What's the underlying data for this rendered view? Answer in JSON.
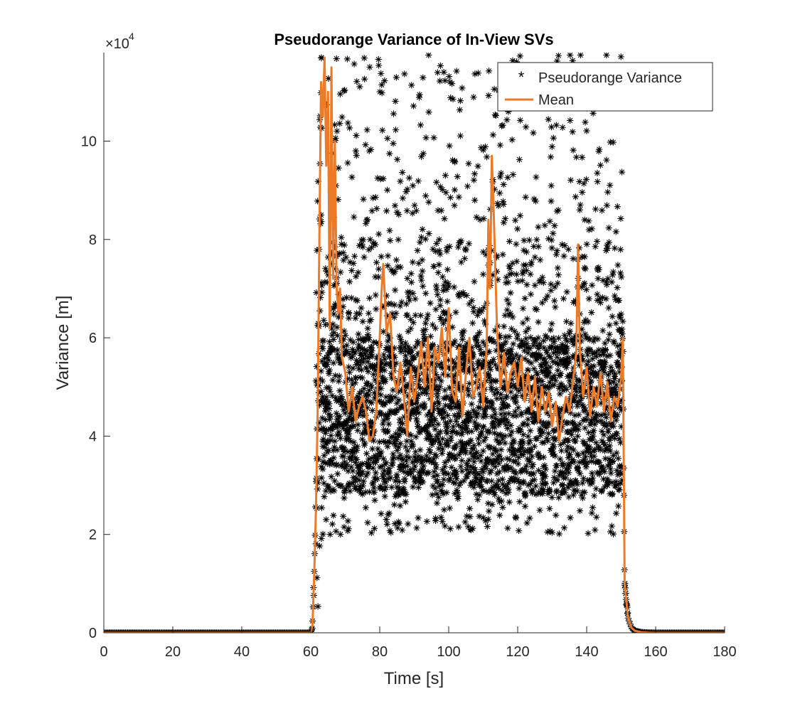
{
  "chart_data": {
    "type": "scatter",
    "title": "Pseudorange Variance of In-View SVs",
    "xlabel": "Time [s]",
    "ylabel": "Variance [m]",
    "y_exponent_label": "×10",
    "y_exponent": "4",
    "xlim": [
      0,
      180
    ],
    "ylim": [
      0,
      118000
    ],
    "xticks": [
      0,
      20,
      40,
      60,
      80,
      100,
      120,
      140,
      160,
      180
    ],
    "xtick_labels": [
      "0",
      "20",
      "40",
      "60",
      "80",
      "100",
      "120",
      "140",
      "160",
      "180"
    ],
    "yticks": [
      0,
      20000,
      40000,
      60000,
      80000,
      100000
    ],
    "ytick_labels": [
      "0",
      "2",
      "4",
      "6",
      "8",
      "10"
    ],
    "grid": false,
    "legend_position": "top-right",
    "series": [
      {
        "name": "Pseudorange Variance",
        "kind": "scatter",
        "marker": "*",
        "color": "#000000",
        "description_of_distribution": {
          "baseline_before": {
            "x_range": [
              0,
              60
            ],
            "y": 0
          },
          "active_period": {
            "x_range": [
              61,
              150
            ],
            "y_min": 18000,
            "y_max": 118000,
            "dense_band": [
              30000,
              60000
            ]
          },
          "baseline_after": {
            "x_range": [
              158,
              180
            ],
            "y": 0
          }
        }
      },
      {
        "name": "Mean",
        "kind": "line",
        "color": "#EC7A26",
        "x": [
          0,
          60,
          60.5,
          61,
          61.5,
          62,
          62.5,
          63,
          63.5,
          64,
          64.5,
          65,
          65.5,
          66,
          66.5,
          67,
          67.5,
          68,
          68.5,
          69,
          70,
          71,
          72,
          73,
          74,
          75,
          76,
          77,
          78,
          79,
          80,
          80.5,
          81,
          82,
          83,
          84,
          85,
          86,
          87,
          88,
          89,
          90,
          91,
          92,
          93,
          94,
          95,
          96,
          97,
          98,
          99,
          100,
          101,
          102,
          103,
          104,
          105,
          106,
          107,
          108,
          109,
          110,
          111,
          111.5,
          112,
          112.5,
          113,
          114,
          115,
          116,
          117,
          118,
          119,
          120,
          121,
          122,
          123,
          124,
          125,
          126,
          127,
          128,
          129,
          130,
          131,
          132,
          133,
          134,
          135,
          136,
          137,
          137.5,
          138,
          139,
          140,
          141,
          142,
          143,
          144,
          145,
          146,
          147,
          148,
          149,
          150,
          150.5,
          151,
          152,
          153,
          154,
          156,
          158,
          160,
          170,
          180
        ],
        "y": [
          0,
          0,
          1500,
          12000,
          25000,
          45000,
          80000,
          112000,
          105000,
          117000,
          95000,
          110000,
          62000,
          115000,
          72000,
          100000,
          70000,
          65000,
          70000,
          56000,
          53000,
          45000,
          50000,
          43000,
          46000,
          48000,
          45000,
          39000,
          40000,
          45000,
          60000,
          69000,
          75000,
          61000,
          65000,
          52000,
          49000,
          55000,
          48000,
          40000,
          54000,
          47000,
          52000,
          59000,
          50000,
          60000,
          45000,
          58000,
          55000,
          62000,
          52000,
          66000,
          49000,
          47000,
          58000,
          44000,
          53000,
          60000,
          48000,
          50000,
          54000,
          46000,
          58000,
          84000,
          70000,
          97000,
          87000,
          62000,
          50000,
          57000,
          49000,
          53000,
          55000,
          50000,
          56000,
          47000,
          53000,
          45000,
          52000,
          43000,
          50000,
          45000,
          49000,
          42000,
          47000,
          39000,
          44000,
          48000,
          45000,
          51000,
          57000,
          79000,
          58000,
          48000,
          54000,
          44000,
          50000,
          46000,
          53000,
          45000,
          51000,
          43000,
          48000,
          46000,
          52000,
          60000,
          10000,
          3000,
          1000,
          400,
          100,
          30,
          0,
          0,
          0
        ]
      }
    ]
  }
}
